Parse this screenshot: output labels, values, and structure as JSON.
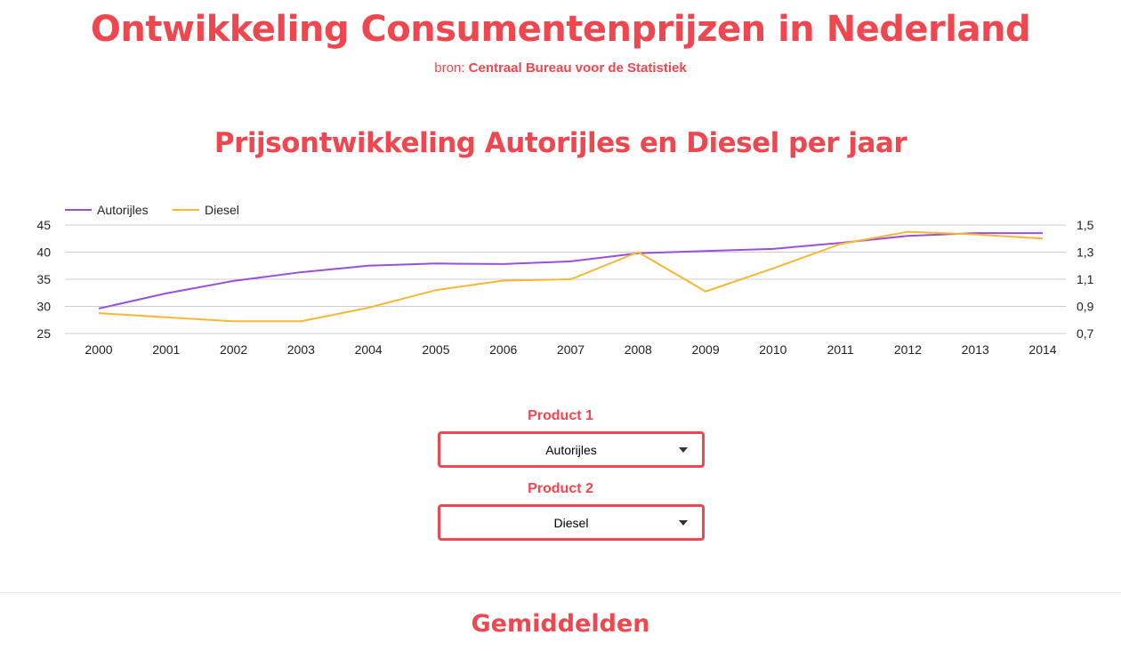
{
  "header": {
    "title": "Ontwikkeling Consumentenprijzen in Nederland",
    "source_prefix": "bron:",
    "source_name": "Centraal Bureau voor de Statistiek"
  },
  "chart_section": {
    "title": "Prijsontwikkeling Autorijles en Diesel per jaar"
  },
  "colors": {
    "accent": "#ef474f",
    "autorijles": "#9b4fd9",
    "diesel": "#f7b733"
  },
  "chart_data": {
    "type": "line",
    "title": "Prijsontwikkeling Autorijles en Diesel per jaar",
    "legend_position": "top-left",
    "grid": true,
    "categories": [
      "2000",
      "2001",
      "2002",
      "2003",
      "2004",
      "2005",
      "2006",
      "2007",
      "2008",
      "2009",
      "2010",
      "2011",
      "2012",
      "2013",
      "2014"
    ],
    "left_axis": {
      "ylim": [
        25,
        45
      ],
      "ticks": [
        "25",
        "30",
        "35",
        "40",
        "45"
      ]
    },
    "right_axis": {
      "ylim": [
        0.7,
        1.5
      ],
      "ticks": [
        "0,7",
        "0,9",
        "1,1",
        "1,3",
        "1,5"
      ]
    },
    "series": [
      {
        "name": "Autorijles",
        "axis": "left",
        "values": [
          29.6,
          32.4,
          34.7,
          36.3,
          37.5,
          37.9,
          37.8,
          38.3,
          39.8,
          40.2,
          40.6,
          41.7,
          43.0,
          43.5,
          43.5
        ]
      },
      {
        "name": "Diesel",
        "axis": "right",
        "values": [
          0.85,
          0.82,
          0.79,
          0.79,
          0.89,
          1.02,
          1.09,
          1.1,
          1.3,
          1.01,
          1.18,
          1.36,
          1.45,
          1.43,
          1.4
        ]
      }
    ]
  },
  "controls": {
    "product1_label": "Product 1",
    "product1_value": "Autorijles",
    "product2_label": "Product 2",
    "product2_value": "Diesel"
  },
  "averages": {
    "title": "Gemiddelden"
  }
}
